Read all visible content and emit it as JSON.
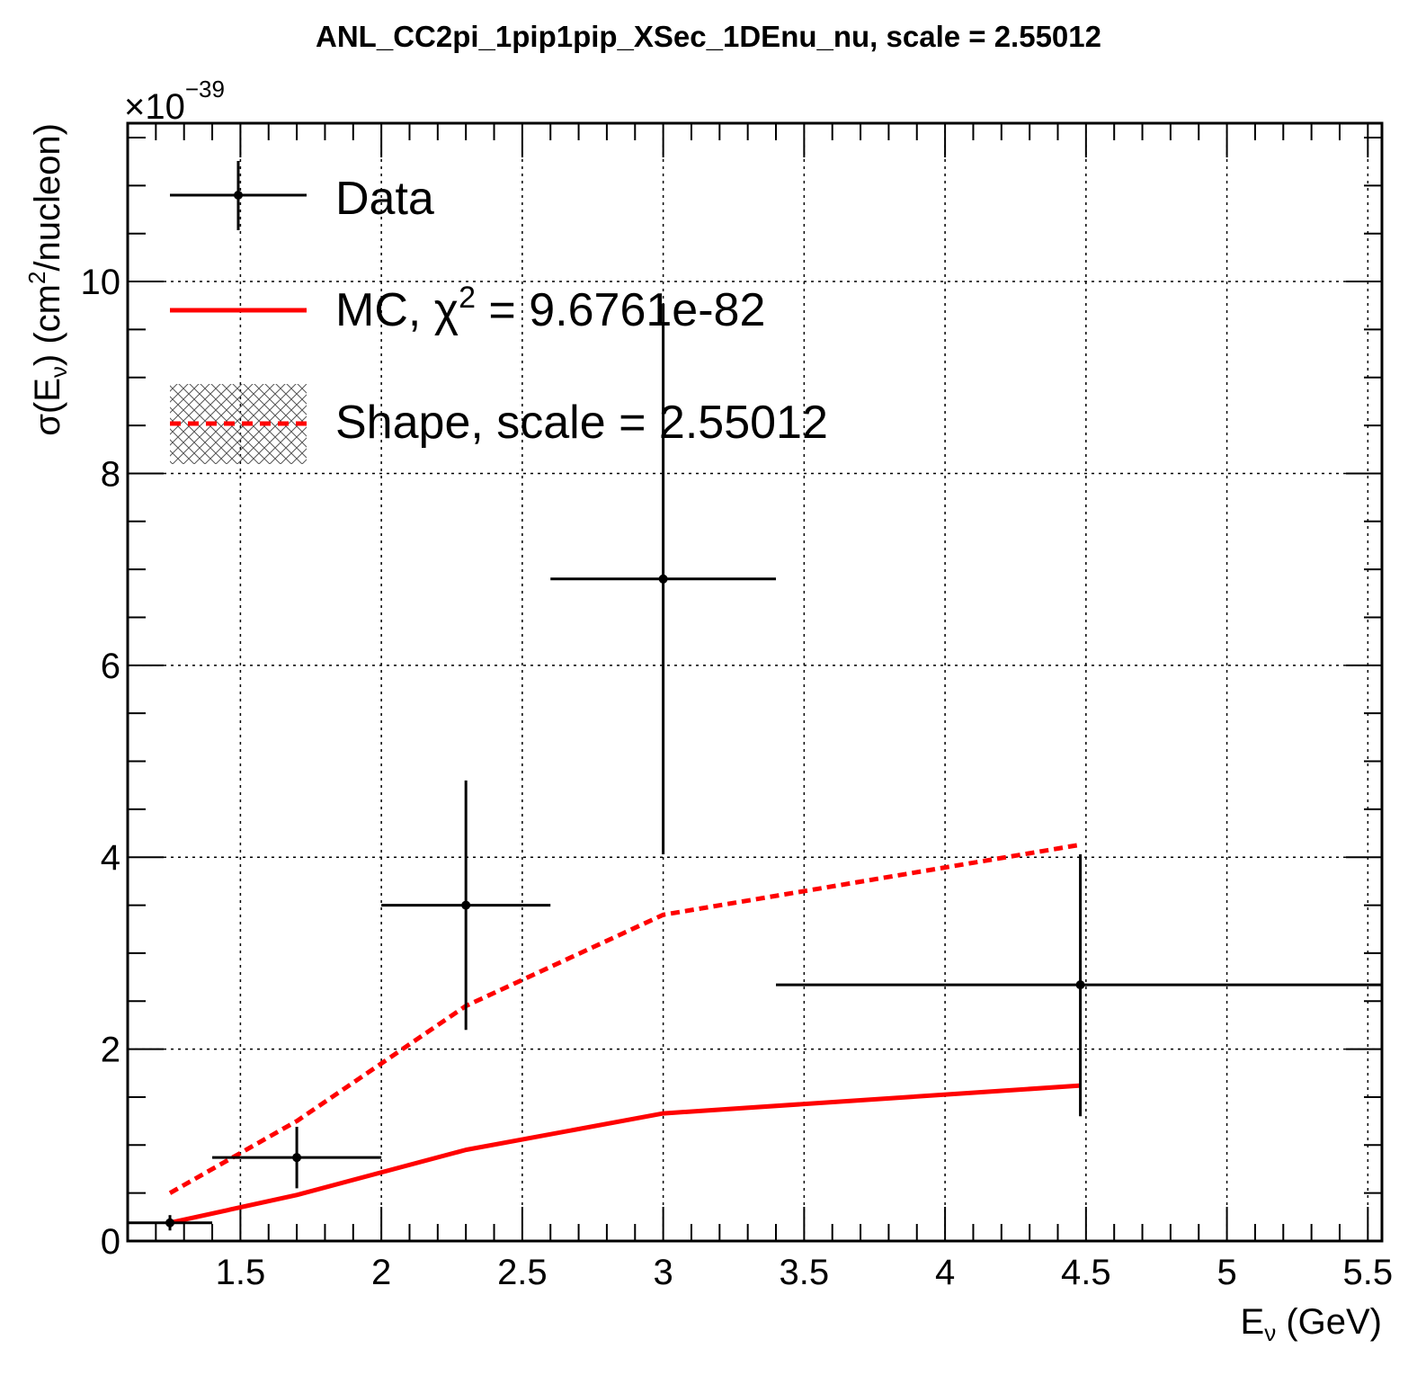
{
  "chart_data": {
    "type": "line",
    "title": "ANL_CC2pi_1pip1pip_XSec_1DEnu_nu, scale = 2.55012",
    "xlabel": {
      "base": "E",
      "sub": "ν",
      "rest": " (GeV)"
    },
    "ylabel": {
      "pre": "σ(E",
      "sub": "ν",
      "mid": ") (cm",
      "sup": "2",
      "post": "/nucleon)"
    },
    "y_multiplier": {
      "base": "×10",
      "exponent": "−39"
    },
    "xlim": [
      1.1,
      5.55
    ],
    "ylim": [
      0,
      11.65
    ],
    "grid": true,
    "x_ticks": [
      "1.5",
      "2",
      "2.5",
      "3",
      "3.5",
      "4",
      "4.5",
      "5",
      "5.5"
    ],
    "y_ticks": [
      "0",
      "2",
      "4",
      "6",
      "8",
      "10"
    ],
    "legend_position": "top-left",
    "legend": {
      "data_label": "Data",
      "mc_label_pre": "MC, ",
      "mc_chi": "χ",
      "mc_sup": "2",
      "mc_label_post": " = 9.6761e-82",
      "shape_label": "Shape, scale = 2.55012"
    },
    "series": [
      {
        "name": "Data",
        "kind": "points-with-errors",
        "color": "#000000",
        "points": [
          {
            "x": 1.25,
            "y": 0.19,
            "xlo": 1.1,
            "xhi": 1.4,
            "ylo": 0.11,
            "yhi": 0.27
          },
          {
            "x": 1.7,
            "y": 0.87,
            "xlo": 1.4,
            "xhi": 2.0,
            "ylo": 0.55,
            "yhi": 1.19
          },
          {
            "x": 2.3,
            "y": 3.5,
            "xlo": 2.0,
            "xhi": 2.6,
            "ylo": 2.2,
            "yhi": 4.8
          },
          {
            "x": 3.0,
            "y": 6.9,
            "xlo": 2.6,
            "xhi": 3.4,
            "ylo": 4.03,
            "yhi": 9.77
          },
          {
            "x": 4.48,
            "y": 2.67,
            "xlo": 3.4,
            "xhi": 5.55,
            "ylo": 1.3,
            "yhi": 4.03
          }
        ]
      },
      {
        "name": "MC",
        "kind": "line",
        "color": "#ff0000",
        "x": [
          1.25,
          1.7,
          2.3,
          3.0,
          4.48
        ],
        "y": [
          0.19,
          0.48,
          0.95,
          1.33,
          1.62
        ]
      },
      {
        "name": "Shape",
        "kind": "dashed-line",
        "color": "#ff0000",
        "x": [
          1.25,
          1.7,
          2.3,
          3.0,
          4.48
        ],
        "y": [
          0.5,
          1.25,
          2.45,
          3.4,
          4.13
        ]
      }
    ]
  }
}
